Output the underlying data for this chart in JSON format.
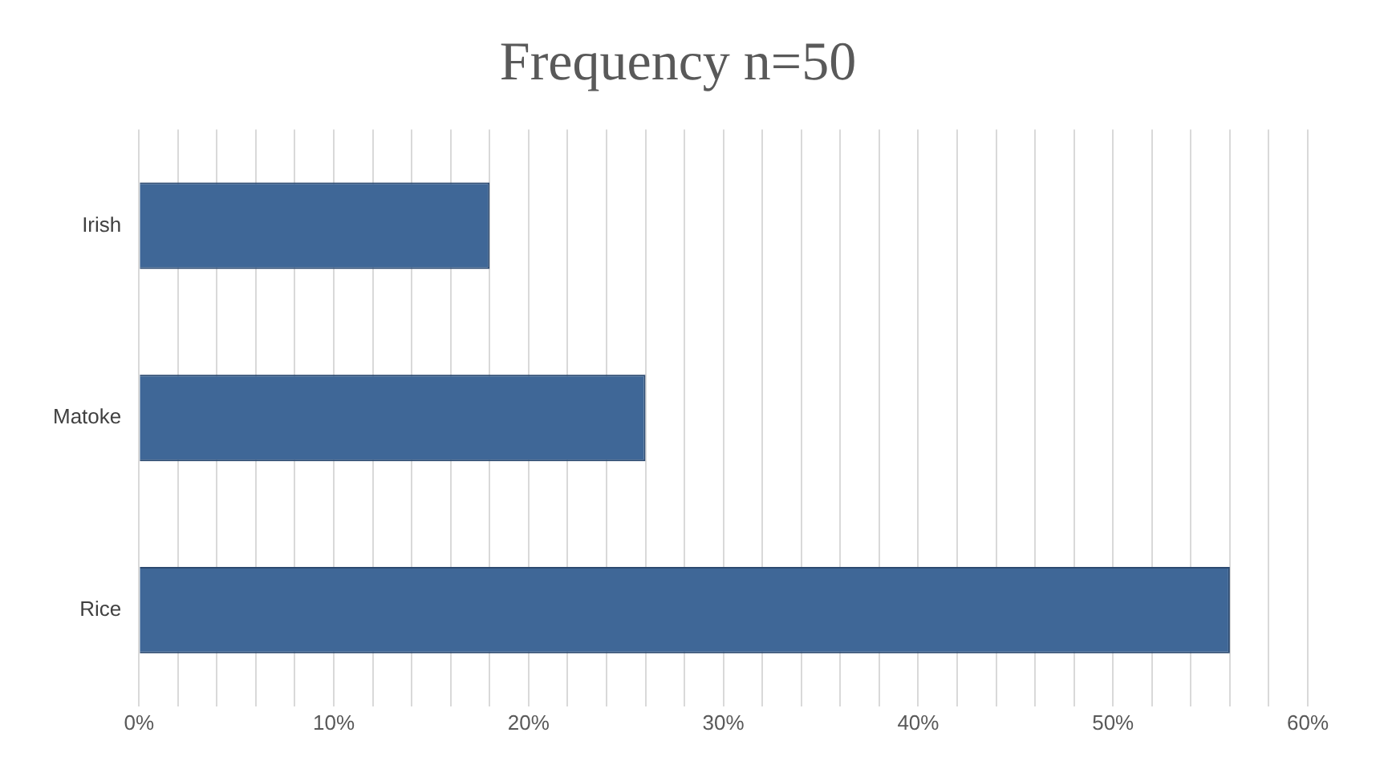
{
  "chart_data": {
    "type": "bar",
    "orientation": "horizontal",
    "title": "Frequency n=50",
    "categories": [
      "Irish",
      "Matoke",
      "Rice"
    ],
    "values": [
      18,
      26,
      56
    ],
    "color": "#3f6797",
    "xlim": [
      0,
      60
    ],
    "xticks": [
      {
        "value": 0,
        "label": "0%"
      },
      {
        "value": 2,
        "label": null
      },
      {
        "value": 4,
        "label": null
      },
      {
        "value": 6,
        "label": null
      },
      {
        "value": 8,
        "label": null
      },
      {
        "value": 10,
        "label": "10%"
      },
      {
        "value": 12,
        "label": null
      },
      {
        "value": 14,
        "label": null
      },
      {
        "value": 16,
        "label": null
      },
      {
        "value": 18,
        "label": null
      },
      {
        "value": 20,
        "label": "20%"
      },
      {
        "value": 22,
        "label": null
      },
      {
        "value": 24,
        "label": null
      },
      {
        "value": 26,
        "label": null
      },
      {
        "value": 28,
        "label": null
      },
      {
        "value": 30,
        "label": "30%"
      },
      {
        "value": 32,
        "label": null
      },
      {
        "value": 34,
        "label": null
      },
      {
        "value": 36,
        "label": null
      },
      {
        "value": 38,
        "label": null
      },
      {
        "value": 40,
        "label": "40%"
      },
      {
        "value": 42,
        "label": null
      },
      {
        "value": 44,
        "label": null
      },
      {
        "value": 46,
        "label": null
      },
      {
        "value": 48,
        "label": null
      },
      {
        "value": 50,
        "label": "50%"
      },
      {
        "value": 52,
        "label": null
      },
      {
        "value": 54,
        "label": null
      },
      {
        "value": 56,
        "label": null
      },
      {
        "value": 58,
        "label": null
      },
      {
        "value": 60,
        "label": "60%"
      }
    ],
    "grid": "x",
    "legend": false
  }
}
